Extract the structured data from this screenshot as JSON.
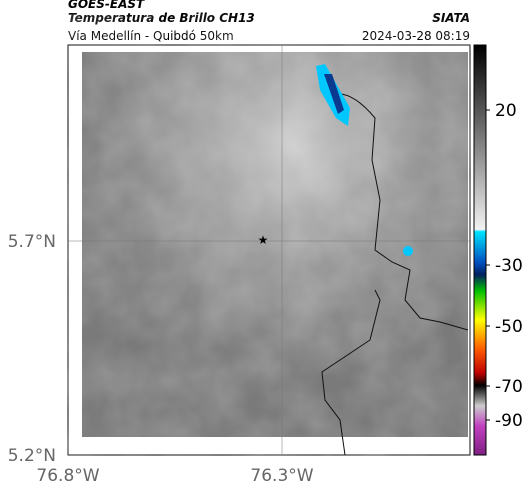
{
  "header": {
    "title": "GOES-EAST",
    "subtitle": "Temperatura de Brillo CH13",
    "source": "SIATA",
    "location": "Vía Medellín - Quibdó 50km",
    "timestamp": "2024-03-28 08:19"
  },
  "axes": {
    "y_labels": [
      "5.7°N",
      "5.2°N"
    ],
    "x_labels": [
      "76.8°W",
      "76.3°W"
    ]
  },
  "colorbar": {
    "ticks": [
      20,
      -30,
      -50,
      -70,
      -90
    ]
  }
}
